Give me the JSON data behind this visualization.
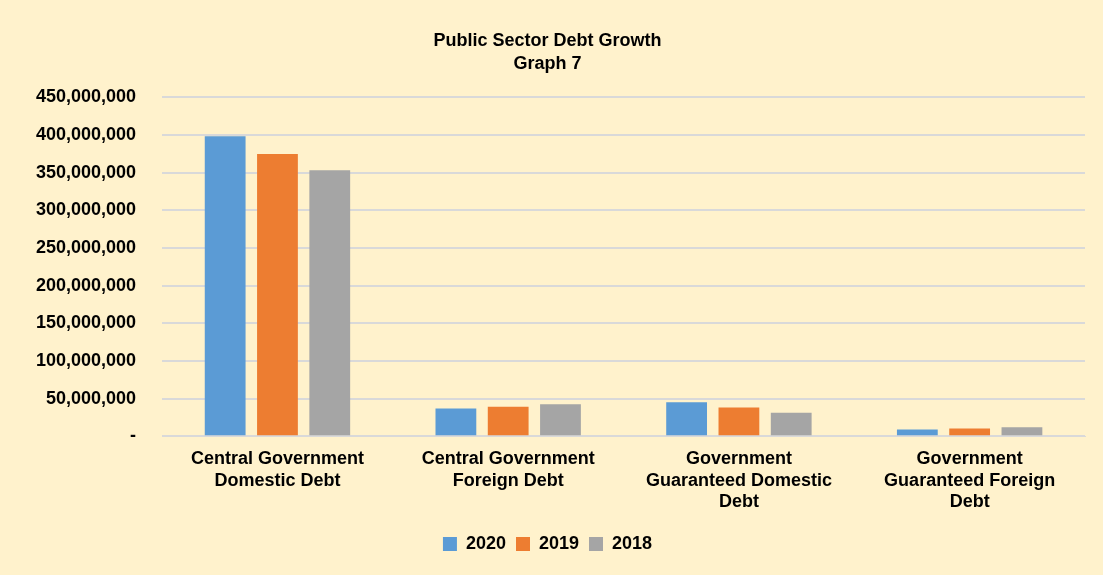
{
  "chart_data": {
    "type": "bar",
    "title": "Public Sector Debt Growth",
    "subtitle": "Graph 7",
    "categories": [
      "Central Government Domestic Debt",
      "Central Government Foreign Debt",
      "Government Guaranteed Domestic Debt",
      "Government Guaranteed Foreign Debt"
    ],
    "series": [
      {
        "name": "2020",
        "color": "#5b9bd5",
        "values": [
          398000000,
          36700000,
          45000000,
          8900000
        ]
      },
      {
        "name": "2019",
        "color": "#ed7d31",
        "values": [
          374500000,
          39200000,
          38000000,
          10100000
        ]
      },
      {
        "name": "2018",
        "color": "#a5a5a5",
        "values": [
          353000000,
          42400000,
          31000000,
          12000000
        ]
      }
    ],
    "ylim": [
      0,
      450000000
    ],
    "yticks": [
      {
        "value": 0,
        "label": "-"
      },
      {
        "value": 50000000,
        "label": "50,000,000"
      },
      {
        "value": 100000000,
        "label": "100,000,000"
      },
      {
        "value": 150000000,
        "label": "150,000,000"
      },
      {
        "value": 200000000,
        "label": "200,000,000"
      },
      {
        "value": 250000000,
        "label": "250,000,000"
      },
      {
        "value": 300000000,
        "label": "300,000,000"
      },
      {
        "value": 350000000,
        "label": "350,000,000"
      },
      {
        "value": 400000000,
        "label": "400,000,000"
      },
      {
        "value": 450000000,
        "label": "450,000,000"
      }
    ],
    "grid": "y",
    "legend": "bottom"
  }
}
